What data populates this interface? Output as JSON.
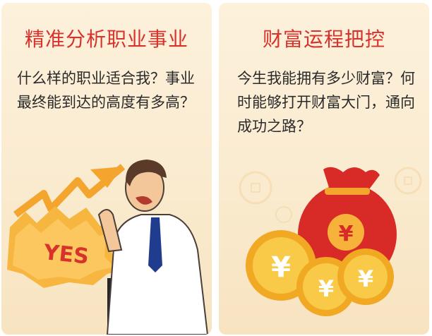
{
  "cards": [
    {
      "title": "精准分析职业事业",
      "description": "什么样的职业适合我？事业最终能到达的高度有多高？",
      "image_text": "YES",
      "accent": "#d8322c"
    },
    {
      "title": "财富运程把控",
      "description": "今生我能拥有多少财富？何时能够打开财富大门，通向成功之路？",
      "coin_symbol": "¥",
      "accent": "#d8322c"
    }
  ]
}
